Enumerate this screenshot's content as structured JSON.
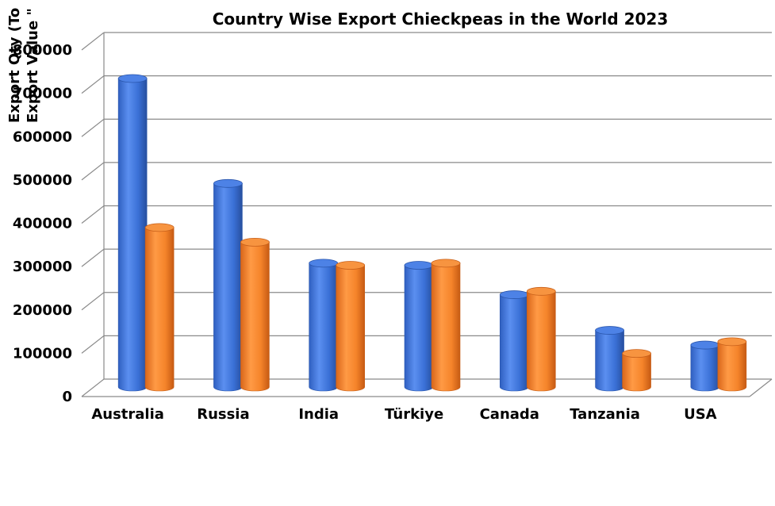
{
  "chart_data": {
    "type": "bar",
    "title": "Country Wise Export Chieckpeas in the World 2023",
    "ylabels": [
      "Export Qty (To",
      "Export Value \""
    ],
    "yticks": [
      "0",
      "100000",
      "200000",
      "300000",
      "400000",
      "500000",
      "600000",
      "700000",
      "800000"
    ],
    "ylim": [
      0,
      800000
    ],
    "categories": [
      "Australia",
      "Russia",
      "India",
      "Türkiye",
      "Canada",
      "Tanzania",
      "USA"
    ],
    "series": [
      {
        "values": [
          735000,
          485000,
          295000,
          290000,
          220000,
          135000,
          100000
        ]
      },
      {
        "values": [
          380000,
          345000,
          290000,
          295000,
          228000,
          80000,
          108000
        ]
      }
    ],
    "grid": true,
    "legend": "none",
    "colors": [
      "#3a72d8",
      "#f5842a"
    ]
  }
}
